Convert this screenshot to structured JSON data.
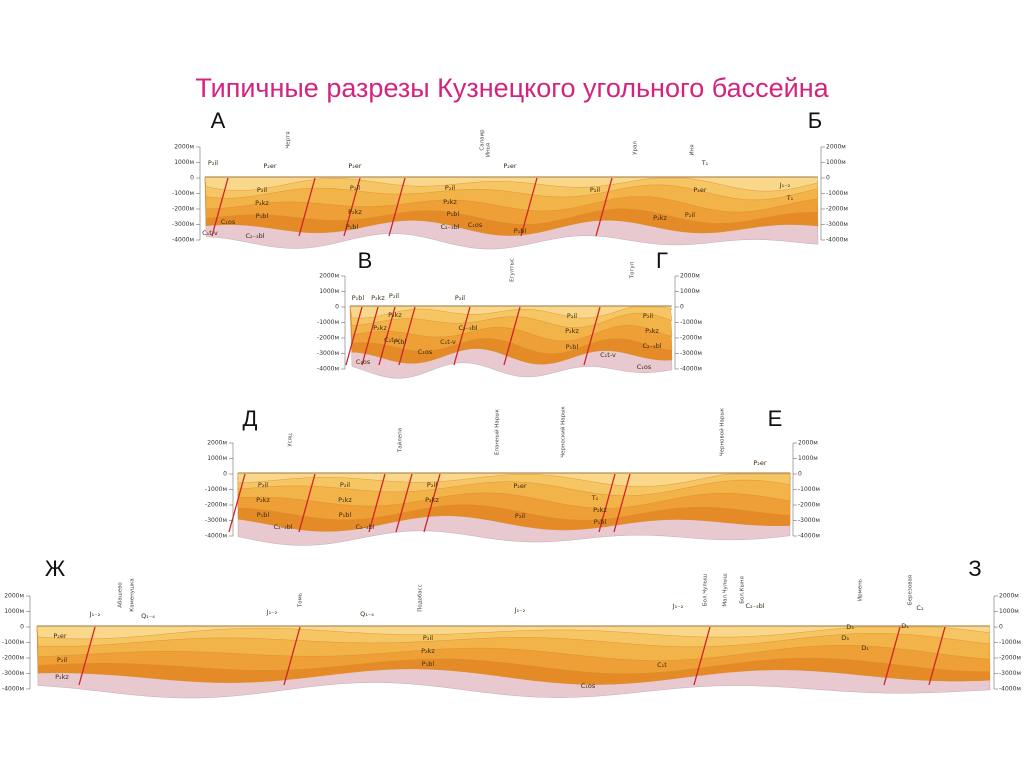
{
  "title": "Типичные разрезы Кузнецкого угольного бассейна",
  "sections": [
    {
      "left": "А",
      "right": "Б",
      "scale": [
        "2000м",
        "1000м",
        "0",
        "-1000м",
        "-2000м",
        "-3000м",
        "-4000м"
      ],
      "places": [
        "Чертя",
        "Салаир",
        "Инья",
        "Урал",
        "Иня"
      ],
      "labels": [
        "P₂il",
        "P₂er",
        "P₂er",
        "P₂er",
        "T₁",
        "P₂il",
        "P₂kz",
        "P₁bl",
        "C₁os",
        "C₁t-v",
        "C₂₋₃bl",
        "P₂il",
        "P₂kz",
        "P₁bl",
        "P₂il",
        "P₂kz",
        "P₁bl",
        "C₂₋₃bl",
        "C₁os",
        "P₁bl",
        "P₂il",
        "P₂kz",
        "P₂er",
        "P₂il",
        "J₁₋₂",
        "T₁"
      ]
    },
    {
      "left": "В",
      "right": "Г",
      "scale": [
        "2000м",
        "1000м",
        "0",
        "-1000м",
        "-2000м",
        "-3000м",
        "-4000м"
      ],
      "places": [
        "Егултыс",
        "Тогул"
      ],
      "labels": [
        "P₁bl",
        "P₂kz",
        "P₂il",
        "P₂il",
        "P₂kz",
        "P₂kz",
        "C₁t-v",
        "P₁bl",
        "C₁os",
        "C₂₋₃bl",
        "C₁t-v",
        "C₁os",
        "P₂il",
        "P₂kz",
        "P₁bl",
        "C₁t-v",
        "P₂il",
        "P₂kz",
        "C₂₋₃bl",
        "C₁os"
      ]
    },
    {
      "left": "Д",
      "right": "Е",
      "scale": [
        "2000м",
        "1000м",
        "0",
        "-1000м",
        "-2000м",
        "-3000м",
        "-4000м"
      ],
      "places": [
        "Усяц",
        "Тайлепа",
        "Еланный Нарык",
        "Черноский Нарык",
        "Черновой Нарык"
      ],
      "labels": [
        "P₂il",
        "P₂kz",
        "P₁bl",
        "C₂₋₃bl",
        "P₂il",
        "P₂kz",
        "P₁bl",
        "C₂₋₃bl",
        "P₂il",
        "P₂kz",
        "P₂er",
        "P₂il",
        "P₂kz",
        "P₁bl",
        "T₁",
        "P₂er"
      ]
    },
    {
      "left": "Ж",
      "right": "З",
      "scale": [
        "2000м",
        "1000м",
        "0",
        "-1000м",
        "-2000м",
        "-3000м",
        "-4000м"
      ],
      "places": [
        "Абашево",
        "Каменушка",
        "Томь",
        "Подобасс",
        "Бол.Чулыш",
        "Мал.Чулыш",
        "Бол.Кыня",
        "Ирмень",
        "Березовая"
      ],
      "labels": [
        "J₁₋₂",
        "Q₁₋₄",
        "J₁₋₂",
        "Q₁₋₄",
        "J₁₋₂",
        "J₁₋₂",
        "C₂₋₃bl",
        "C₂",
        "P₂er",
        "P₂il",
        "P₂kz",
        "P₂il",
        "P₂kz",
        "P₁bl",
        "C₁t",
        "D₃",
        "D₃",
        "D₁",
        "D₁",
        "C₁os"
      ]
    }
  ]
}
